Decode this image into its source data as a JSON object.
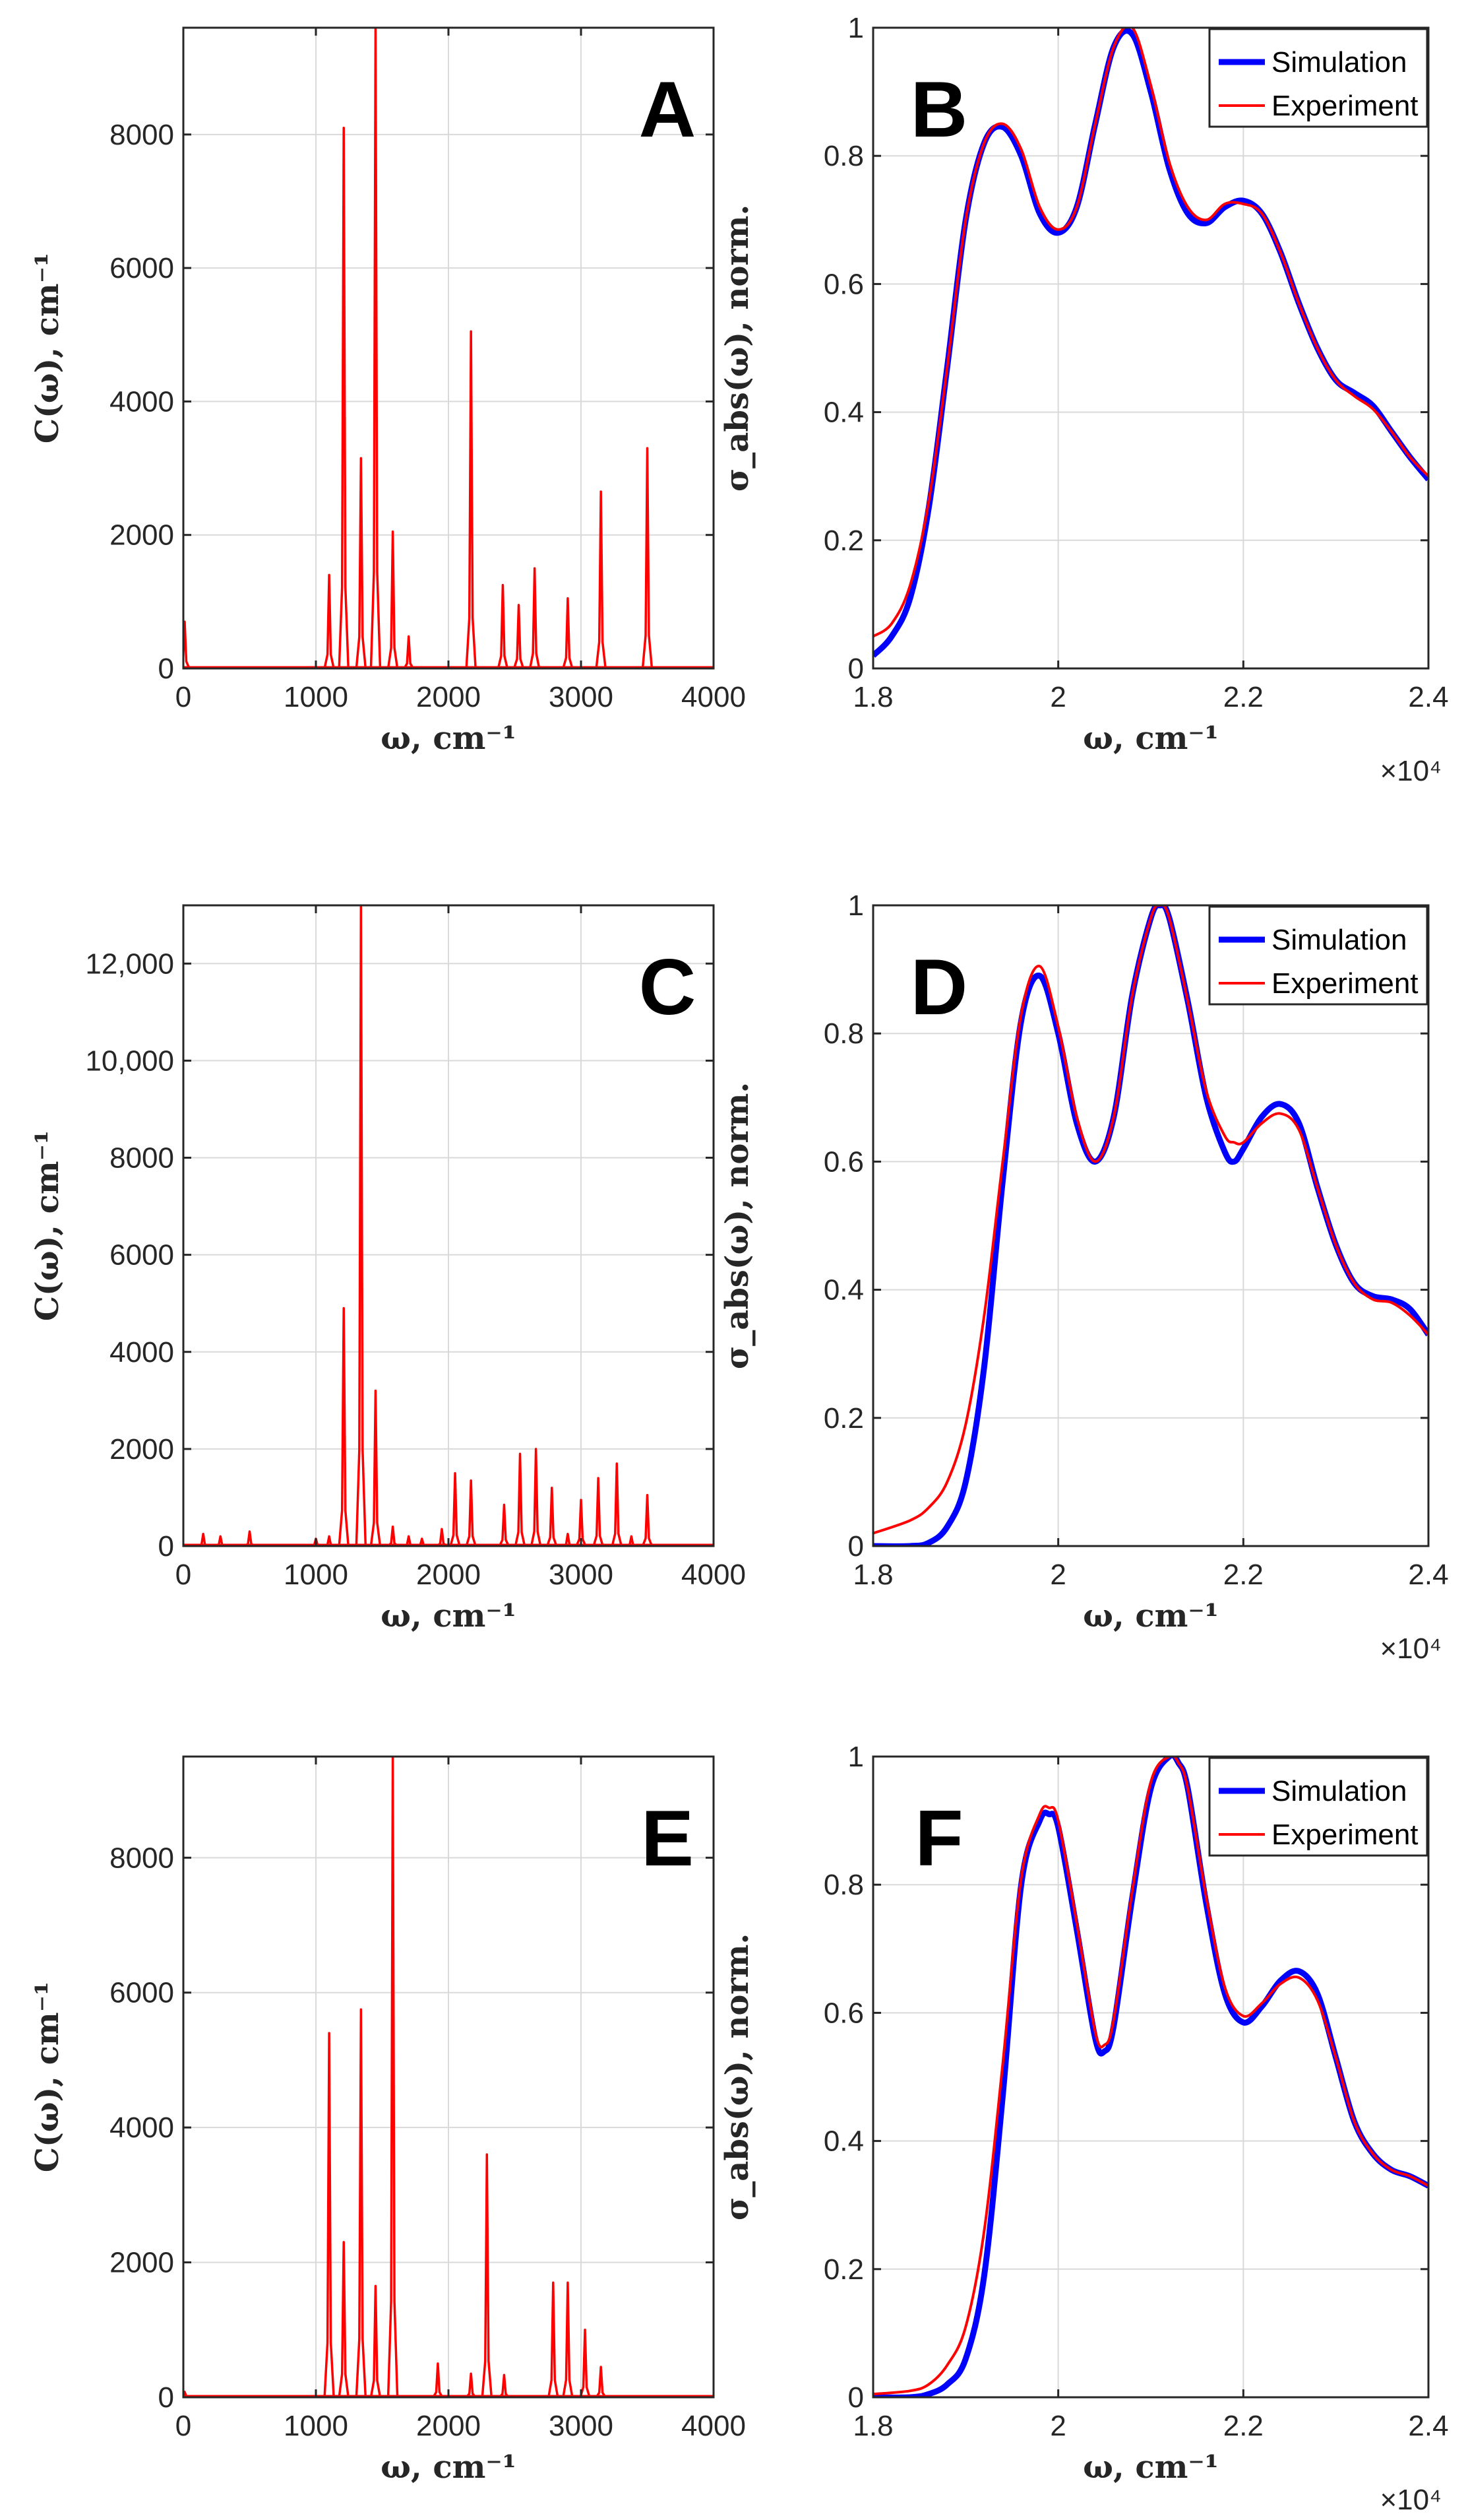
{
  "chart_data": [
    {
      "id": "A",
      "type": "line",
      "panel_label": "A",
      "xlabel": "ω, cm⁻¹",
      "ylabel": "C(ω), cm⁻¹",
      "xlim": [
        0,
        4000
      ],
      "ylim": [
        0,
        9600
      ],
      "xticks": [
        0,
        1000,
        2000,
        3000,
        4000
      ],
      "xtick_labels": [
        "0",
        "1000",
        "2000",
        "3000",
        "4000"
      ],
      "yticks": [
        0,
        2000,
        4000,
        6000,
        8000
      ],
      "ytick_labels": [
        "0",
        "2000",
        "4000",
        "6000",
        "8000"
      ],
      "grid": true,
      "line_color": "#ff0000",
      "peaks": [
        {
          "x": 10,
          "y": 700
        },
        {
          "x": 1100,
          "y": 1400
        },
        {
          "x": 1210,
          "y": 8100
        },
        {
          "x": 1340,
          "y": 3150
        },
        {
          "x": 1450,
          "y": 9600
        },
        {
          "x": 1580,
          "y": 2050
        },
        {
          "x": 1700,
          "y": 480
        },
        {
          "x": 2170,
          "y": 5050
        },
        {
          "x": 2410,
          "y": 1250
        },
        {
          "x": 2530,
          "y": 950
        },
        {
          "x": 2650,
          "y": 1500
        },
        {
          "x": 2900,
          "y": 1050
        },
        {
          "x": 3150,
          "y": 2650
        },
        {
          "x": 3500,
          "y": 3300
        }
      ]
    },
    {
      "id": "B",
      "type": "line",
      "panel_label": "B",
      "xlabel": "ω, cm⁻¹",
      "ylabel": "σ_abs(ω), norm.",
      "xlim": [
        18000,
        24000
      ],
      "ylim": [
        0,
        1
      ],
      "xticks": [
        18000,
        20000,
        22000,
        24000
      ],
      "xtick_labels": [
        "1.8",
        "2",
        "2.2",
        "2.4"
      ],
      "yticks": [
        0,
        0.2,
        0.4,
        0.6,
        0.8,
        1
      ],
      "ytick_labels": [
        "0",
        "0.2",
        "0.4",
        "0.6",
        "0.8",
        "1"
      ],
      "x_exponent_label": "×10⁴",
      "grid": true,
      "legend": {
        "position": "top-right",
        "entries": [
          {
            "name": "Simulation",
            "color": "#0000ff"
          },
          {
            "name": "Experiment",
            "color": "#ff0000"
          }
        ]
      },
      "series": [
        {
          "name": "Simulation",
          "color": "#0000ff",
          "x": [
            18000,
            18200,
            18400,
            18600,
            18800,
            19000,
            19200,
            19400,
            19600,
            19800,
            20000,
            20200,
            20400,
            20600,
            20800,
            21000,
            21200,
            21400,
            21600,
            21800,
            22000,
            22200,
            22400,
            22600,
            22800,
            23000,
            23200,
            23400,
            23600,
            23800,
            24000
          ],
          "y": [
            0.02,
            0.05,
            0.11,
            0.25,
            0.47,
            0.7,
            0.82,
            0.845,
            0.8,
            0.71,
            0.68,
            0.72,
            0.85,
            0.97,
            0.99,
            0.9,
            0.78,
            0.71,
            0.695,
            0.72,
            0.73,
            0.71,
            0.65,
            0.57,
            0.5,
            0.45,
            0.43,
            0.41,
            0.37,
            0.33,
            0.295
          ]
        },
        {
          "name": "Experiment",
          "color": "#ff0000",
          "x": [
            18000,
            18200,
            18400,
            18600,
            18800,
            19000,
            19200,
            19400,
            19600,
            19800,
            20000,
            20200,
            20400,
            20600,
            20800,
            21000,
            21200,
            21400,
            21600,
            21800,
            22000,
            22200,
            22400,
            22600,
            22800,
            23000,
            23200,
            23400,
            23600,
            23800,
            24000
          ],
          "y": [
            0.05,
            0.07,
            0.13,
            0.26,
            0.47,
            0.7,
            0.82,
            0.85,
            0.81,
            0.72,
            0.685,
            0.72,
            0.85,
            0.97,
            1.0,
            0.91,
            0.79,
            0.72,
            0.7,
            0.725,
            0.725,
            0.71,
            0.65,
            0.57,
            0.5,
            0.45,
            0.425,
            0.405,
            0.37,
            0.33,
            0.3
          ]
        }
      ]
    },
    {
      "id": "C",
      "type": "line",
      "panel_label": "C",
      "xlabel": "ω, cm⁻¹",
      "ylabel": "C(ω), cm⁻¹",
      "xlim": [
        0,
        4000
      ],
      "ylim": [
        0,
        13200
      ],
      "xticks": [
        0,
        1000,
        2000,
        3000,
        4000
      ],
      "xtick_labels": [
        "0",
        "1000",
        "2000",
        "3000",
        "4000"
      ],
      "yticks": [
        0,
        2000,
        4000,
        6000,
        8000,
        10000,
        12000
      ],
      "ytick_labels": [
        "0",
        "2000",
        "4000",
        "6000",
        "8000",
        "10,000",
        "12,000"
      ],
      "grid": true,
      "line_color": "#ff0000",
      "peaks": [
        {
          "x": 150,
          "y": 250
        },
        {
          "x": 280,
          "y": 200
        },
        {
          "x": 500,
          "y": 300
        },
        {
          "x": 1000,
          "y": 150
        },
        {
          "x": 1100,
          "y": 200
        },
        {
          "x": 1210,
          "y": 4900
        },
        {
          "x": 1340,
          "y": 13200
        },
        {
          "x": 1450,
          "y": 3200
        },
        {
          "x": 1580,
          "y": 400
        },
        {
          "x": 1700,
          "y": 200
        },
        {
          "x": 1800,
          "y": 150
        },
        {
          "x": 1950,
          "y": 350
        },
        {
          "x": 2050,
          "y": 1500
        },
        {
          "x": 2170,
          "y": 1350
        },
        {
          "x": 2420,
          "y": 850
        },
        {
          "x": 2540,
          "y": 1900
        },
        {
          "x": 2660,
          "y": 2000
        },
        {
          "x": 2780,
          "y": 1200
        },
        {
          "x": 2900,
          "y": 250
        },
        {
          "x": 3000,
          "y": 950
        },
        {
          "x": 3130,
          "y": 1400
        },
        {
          "x": 3270,
          "y": 1700
        },
        {
          "x": 3380,
          "y": 200
        },
        {
          "x": 3500,
          "y": 1050
        }
      ]
    },
    {
      "id": "D",
      "type": "line",
      "panel_label": "D",
      "xlabel": "ω, cm⁻¹",
      "ylabel": "σ_abs(ω), norm.",
      "xlim": [
        18000,
        24000
      ],
      "ylim": [
        0,
        1
      ],
      "xticks": [
        18000,
        20000,
        22000,
        24000
      ],
      "xtick_labels": [
        "1.8",
        "2",
        "2.2",
        "2.4"
      ],
      "yticks": [
        0,
        0.2,
        0.4,
        0.6,
        0.8,
        1
      ],
      "ytick_labels": [
        "0",
        "0.2",
        "0.4",
        "0.6",
        "0.8",
        "1"
      ],
      "x_exponent_label": "×10⁴",
      "grid": true,
      "legend": {
        "position": "top-right",
        "entries": [
          {
            "name": "Simulation",
            "color": "#0000ff"
          },
          {
            "name": "Experiment",
            "color": "#ff0000"
          }
        ]
      },
      "series": [
        {
          "name": "Simulation",
          "color": "#0000ff",
          "x": [
            18000,
            18400,
            18600,
            18800,
            19000,
            19200,
            19400,
            19600,
            19800,
            20000,
            20200,
            20400,
            20600,
            20800,
            21000,
            21100,
            21200,
            21400,
            21600,
            21800,
            21900,
            22000,
            22200,
            22400,
            22600,
            22800,
            23000,
            23200,
            23400,
            23600,
            23800,
            24000
          ],
          "y": [
            0.0,
            0.0,
            0.005,
            0.03,
            0.1,
            0.28,
            0.57,
            0.82,
            0.89,
            0.8,
            0.66,
            0.6,
            0.67,
            0.86,
            0.98,
            1.0,
            0.98,
            0.85,
            0.7,
            0.615,
            0.6,
            0.62,
            0.67,
            0.69,
            0.66,
            0.56,
            0.47,
            0.41,
            0.39,
            0.385,
            0.37,
            0.33
          ]
        },
        {
          "name": "Experiment",
          "color": "#ff0000",
          "x": [
            18000,
            18400,
            18600,
            18800,
            19000,
            19200,
            19400,
            19600,
            19800,
            20000,
            20200,
            20400,
            20600,
            20800,
            21000,
            21100,
            21200,
            21400,
            21600,
            21800,
            21900,
            22000,
            22200,
            22400,
            22600,
            22800,
            23000,
            23200,
            23400,
            23600,
            23800,
            24000
          ],
          "y": [
            0.02,
            0.04,
            0.06,
            0.1,
            0.19,
            0.36,
            0.6,
            0.83,
            0.905,
            0.81,
            0.67,
            0.6,
            0.67,
            0.86,
            0.98,
            1.0,
            0.98,
            0.85,
            0.71,
            0.64,
            0.63,
            0.63,
            0.66,
            0.675,
            0.65,
            0.56,
            0.47,
            0.41,
            0.385,
            0.38,
            0.36,
            0.33
          ]
        }
      ]
    },
    {
      "id": "E",
      "type": "line",
      "panel_label": "E",
      "xlabel": "ω, cm⁻¹",
      "ylabel": "C(ω), cm⁻¹",
      "xlim": [
        0,
        4000
      ],
      "ylim": [
        0,
        9500
      ],
      "xticks": [
        0,
        1000,
        2000,
        3000,
        4000
      ],
      "xtick_labels": [
        "0",
        "1000",
        "2000",
        "3000",
        "4000"
      ],
      "yticks": [
        0,
        2000,
        4000,
        6000,
        8000
      ],
      "ytick_labels": [
        "0",
        "2000",
        "4000",
        "6000",
        "8000"
      ],
      "grid": true,
      "line_color": "#ff0000",
      "peaks": [
        {
          "x": 10,
          "y": 80
        },
        {
          "x": 1100,
          "y": 5400
        },
        {
          "x": 1210,
          "y": 2300
        },
        {
          "x": 1340,
          "y": 5750
        },
        {
          "x": 1450,
          "y": 1650
        },
        {
          "x": 1580,
          "y": 9500
        },
        {
          "x": 1920,
          "y": 500
        },
        {
          "x": 2170,
          "y": 350
        },
        {
          "x": 2290,
          "y": 3600
        },
        {
          "x": 2420,
          "y": 330
        },
        {
          "x": 2790,
          "y": 1700
        },
        {
          "x": 2900,
          "y": 1700
        },
        {
          "x": 3030,
          "y": 1000
        },
        {
          "x": 3150,
          "y": 450
        }
      ]
    },
    {
      "id": "F",
      "type": "line",
      "panel_label": "F",
      "xlabel": "ω, cm⁻¹",
      "ylabel": "σ_abs(ω), norm.",
      "xlim": [
        18000,
        24000
      ],
      "ylim": [
        0,
        1
      ],
      "xticks": [
        18000,
        20000,
        22000,
        24000
      ],
      "xtick_labels": [
        "1.8",
        "2",
        "2.2",
        "2.4"
      ],
      "yticks": [
        0,
        0.2,
        0.4,
        0.6,
        0.8,
        1
      ],
      "ytick_labels": [
        "0",
        "0.2",
        "0.4",
        "0.6",
        "0.8",
        "1"
      ],
      "x_exponent_label": "×10⁴",
      "grid": true,
      "legend": {
        "position": "top-right",
        "entries": [
          {
            "name": "Simulation",
            "color": "#0000ff"
          },
          {
            "name": "Experiment",
            "color": "#ff0000"
          }
        ]
      },
      "series": [
        {
          "name": "Simulation",
          "color": "#0000ff",
          "x": [
            18000,
            18400,
            18600,
            18800,
            19000,
            19200,
            19400,
            19600,
            19800,
            19900,
            20000,
            20200,
            20400,
            20500,
            20600,
            20800,
            21000,
            21200,
            21300,
            21400,
            21600,
            21800,
            22000,
            22200,
            22400,
            22600,
            22800,
            23000,
            23200,
            23400,
            23600,
            23800,
            24000
          ],
          "y": [
            0.0,
            0.0,
            0.005,
            0.02,
            0.06,
            0.19,
            0.47,
            0.8,
            0.9,
            0.91,
            0.89,
            0.73,
            0.56,
            0.54,
            0.58,
            0.78,
            0.95,
            1.0,
            0.99,
            0.95,
            0.77,
            0.63,
            0.585,
            0.61,
            0.65,
            0.665,
            0.63,
            0.53,
            0.43,
            0.38,
            0.355,
            0.345,
            0.33
          ]
        },
        {
          "name": "Experiment",
          "color": "#ff0000",
          "x": [
            18000,
            18400,
            18600,
            18800,
            19000,
            19200,
            19400,
            19600,
            19800,
            19900,
            20000,
            20200,
            20400,
            20500,
            20600,
            20800,
            21000,
            21200,
            21300,
            21400,
            21600,
            21800,
            22000,
            22200,
            22400,
            22600,
            22800,
            23000,
            23200,
            23400,
            23600,
            23800,
            24000
          ],
          "y": [
            0.005,
            0.01,
            0.02,
            0.05,
            0.11,
            0.26,
            0.52,
            0.81,
            0.91,
            0.92,
            0.9,
            0.74,
            0.57,
            0.55,
            0.59,
            0.79,
            0.96,
            1.0,
            0.99,
            0.95,
            0.78,
            0.64,
            0.595,
            0.615,
            0.645,
            0.655,
            0.62,
            0.53,
            0.43,
            0.38,
            0.355,
            0.345,
            0.33
          ]
        }
      ]
    }
  ]
}
